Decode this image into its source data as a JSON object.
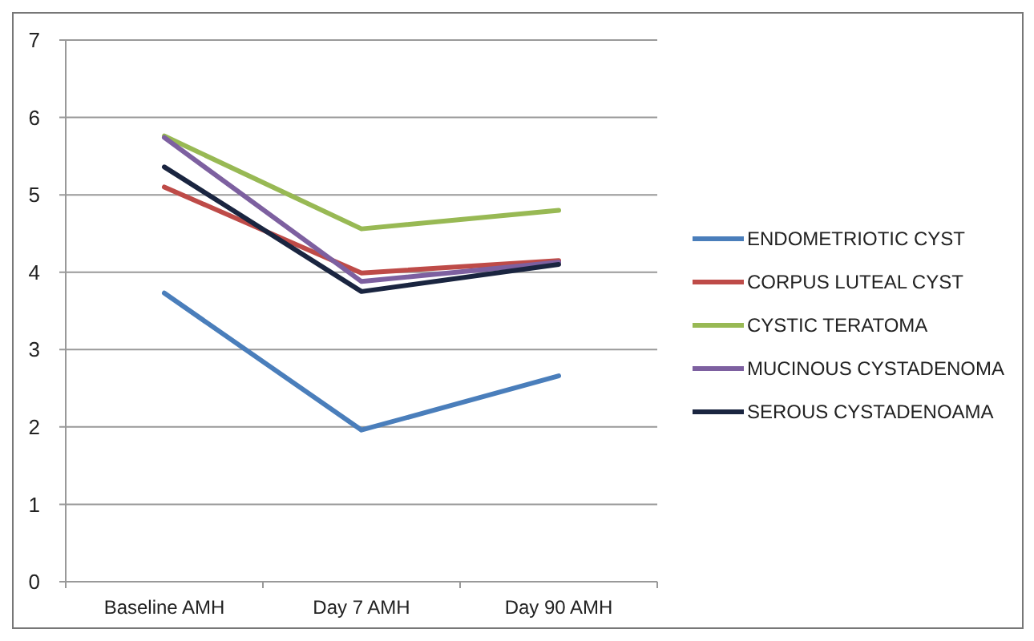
{
  "chart_data": {
    "type": "line",
    "categories": [
      "Baseline AMH",
      "Day 7 AMH",
      "Day 90 AMH"
    ],
    "series": [
      {
        "name": "ENDOMETRIOTIC CYST",
        "color": "#4a7ebb",
        "values": [
          3.73,
          1.96,
          2.66
        ]
      },
      {
        "name": "CORPUS LUTEAL CYST",
        "color": "#be4b48",
        "values": [
          5.1,
          3.99,
          4.15
        ]
      },
      {
        "name": "CYSTIC TERATOMA",
        "color": "#98b954",
        "values": [
          5.76,
          4.56,
          4.8
        ]
      },
      {
        "name": "MUCINOUS CYSTADENOMA",
        "color": "#7d60a0",
        "values": [
          5.74,
          3.88,
          4.13
        ]
      },
      {
        "name": "SEROUS CYSTADENOAMA",
        "color": "#1a2540",
        "values": [
          5.36,
          3.75,
          4.1
        ]
      }
    ],
    "ylim": [
      0,
      7
    ],
    "yticks": [
      0,
      1,
      2,
      3,
      4,
      5,
      6,
      7
    ],
    "grid": "y",
    "legend": "right",
    "marker": "none",
    "line_style": "solid"
  }
}
